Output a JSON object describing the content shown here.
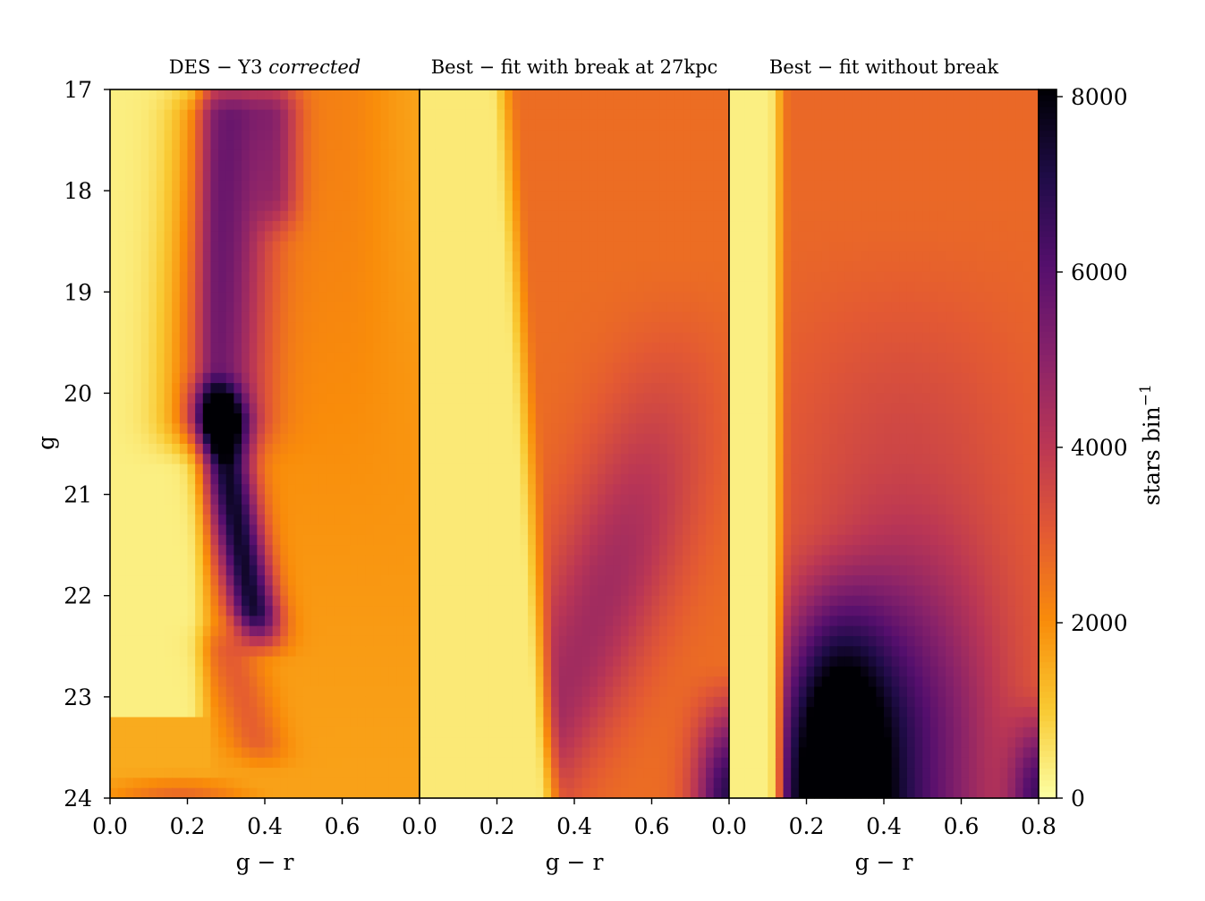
{
  "chart_data": {
    "type": "heatmap",
    "colormap": "inferno_r",
    "shared_yaxis": {
      "label": "g",
      "range": [
        17,
        24
      ],
      "inverted": true,
      "ticks": [
        17,
        18,
        19,
        20,
        21,
        22,
        23,
        24
      ],
      "tick_labels": [
        "17",
        "18",
        "19",
        "20",
        "21",
        "22",
        "23",
        "24"
      ]
    },
    "colorbar": {
      "label_main": "stars bin",
      "label_sup": "−1",
      "range": [
        0,
        8000
      ],
      "ticks": [
        0,
        2000,
        4000,
        6000,
        8000
      ],
      "tick_labels": [
        "0",
        "2000",
        "4000",
        "6000",
        "8000"
      ]
    },
    "panels": [
      {
        "title_main": "DES − Y3 ",
        "title_italic": "corrected",
        "xlabel": "g − r",
        "xrange": [
          0.0,
          0.8
        ],
        "xticks": [
          0.0,
          0.2,
          0.4,
          0.6
        ],
        "xtick_labels": [
          "0.0",
          "0.2",
          "0.4",
          "0.6"
        ],
        "model": "des",
        "components": [
          {
            "desc": "main-sequence ridge",
            "x0": 0.275,
            "xcurv": 0.003,
            "x_quad_center": 20.7,
            "y_from": 17.0,
            "y_to": 20.5,
            "amp": 3400,
            "sigx": 0.085
          },
          {
            "desc": "dense ridge segment",
            "x0": 0.295,
            "xcurv": 0.007,
            "x_quad_center": 20.5,
            "y_from": 20.0,
            "y_to": 22.4,
            "amp": 5600,
            "sigx": 0.045
          },
          {
            "desc": "upper ridge near 0.45",
            "x0": 0.435,
            "xcurv": 0.0,
            "x_quad_center": 17.5,
            "y_from": 17.0,
            "y_to": 18.3,
            "amp": 1500,
            "sigx": 0.04
          }
        ],
        "background_level": 1900,
        "blue_edge_gr": 0.24
      },
      {
        "title_main": "Best − fit with break at 27kpc",
        "title_italic": "",
        "xlabel": "g − r",
        "xrange": [
          0.0,
          0.8
        ],
        "xticks": [
          0.0,
          0.2,
          0.4,
          0.6
        ],
        "xtick_labels": [
          "0.0",
          "0.2",
          "0.4",
          "0.6"
        ],
        "model": "break",
        "background_level": 2200,
        "blue_edge_gr": 0.25
      },
      {
        "title_main": "Best − fit without break",
        "title_italic": "",
        "xlabel": "g − r",
        "xrange": [
          0.0,
          0.8
        ],
        "xticks": [
          0.0,
          0.2,
          0.4,
          0.6,
          0.8
        ],
        "xtick_labels": [
          "0.0",
          "0.2",
          "0.4",
          "0.6",
          "0.8"
        ],
        "model": "nobreak",
        "background_level": 2400,
        "blue_edge_gr": 0.15
      }
    ],
    "grid": false,
    "legend": "none"
  }
}
